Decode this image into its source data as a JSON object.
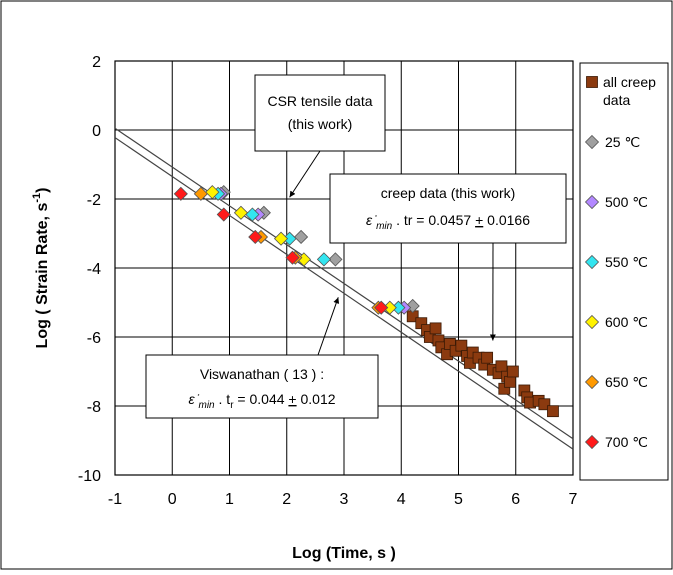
{
  "chart_data": {
    "type": "scatter",
    "xlabel": "Log (Time,  s )",
    "ylabel_main": "Log ( Strain Rate,  s",
    "ylabel_sup": "-1",
    "ylabel_close": ")",
    "xlim": [
      -1,
      7
    ],
    "ylim": [
      -10,
      2
    ],
    "xticks": [
      -1,
      0,
      1,
      2,
      3,
      4,
      5,
      6,
      7
    ],
    "yticks": [
      -10,
      -8,
      -6,
      -4,
      -2,
      0,
      2
    ],
    "grid": true,
    "legend_position": "right",
    "series": [
      {
        "name": "all creep data",
        "marker": "square",
        "color": "#8B3A0F",
        "points": [
          [
            4.2,
            -5.4
          ],
          [
            4.35,
            -5.6
          ],
          [
            4.45,
            -5.8
          ],
          [
            4.5,
            -6.0
          ],
          [
            4.6,
            -5.75
          ],
          [
            4.65,
            -6.1
          ],
          [
            4.7,
            -6.3
          ],
          [
            4.8,
            -6.5
          ],
          [
            4.85,
            -6.2
          ],
          [
            4.95,
            -6.4
          ],
          [
            5.05,
            -6.25
          ],
          [
            5.15,
            -6.55
          ],
          [
            5.2,
            -6.75
          ],
          [
            5.25,
            -6.45
          ],
          [
            5.35,
            -6.6
          ],
          [
            5.45,
            -6.8
          ],
          [
            5.5,
            -6.6
          ],
          [
            5.6,
            -6.95
          ],
          [
            5.7,
            -7.05
          ],
          [
            5.75,
            -6.85
          ],
          [
            5.8,
            -7.5
          ],
          [
            5.85,
            -7.15
          ],
          [
            5.9,
            -7.3
          ],
          [
            5.95,
            -7.0
          ],
          [
            6.15,
            -7.55
          ],
          [
            6.2,
            -7.75
          ],
          [
            6.25,
            -7.9
          ],
          [
            6.4,
            -7.85
          ],
          [
            6.5,
            -7.95
          ],
          [
            6.65,
            -8.15
          ]
        ]
      },
      {
        "name": "25 ℃",
        "marker": "diamond",
        "color": "#A0A0A0",
        "points": [
          [
            0.9,
            -1.8
          ],
          [
            1.6,
            -2.4
          ],
          [
            2.25,
            -3.1
          ],
          [
            2.85,
            -3.75
          ],
          [
            4.2,
            -5.1
          ]
        ]
      },
      {
        "name": "500 ℃",
        "marker": "diamond",
        "color": "#B388FF",
        "points": [
          [
            0.85,
            -1.85
          ],
          [
            1.5,
            -2.45
          ],
          [
            4.05,
            -5.15
          ]
        ]
      },
      {
        "name": "550 ℃",
        "marker": "diamond",
        "color": "#33E5F0",
        "points": [
          [
            0.8,
            -1.85
          ],
          [
            1.4,
            -2.45
          ],
          [
            2.05,
            -3.15
          ],
          [
            2.65,
            -3.75
          ],
          [
            3.95,
            -5.15
          ]
        ]
      },
      {
        "name": "600 ℃",
        "marker": "diamond",
        "color": "#FFF200",
        "points": [
          [
            0.7,
            -1.8
          ],
          [
            1.2,
            -2.4
          ],
          [
            1.9,
            -3.15
          ],
          [
            2.3,
            -3.75
          ],
          [
            3.8,
            -5.15
          ]
        ]
      },
      {
        "name": "650 ℃",
        "marker": "diamond",
        "color": "#FF9900",
        "points": [
          [
            0.5,
            -1.85
          ],
          [
            1.55,
            -3.1
          ],
          [
            2.15,
            -3.7
          ],
          [
            3.6,
            -5.15
          ]
        ]
      },
      {
        "name": "700 ℃",
        "marker": "diamond",
        "color": "#FF1A1A",
        "points": [
          [
            0.15,
            -1.85
          ],
          [
            0.9,
            -2.45
          ],
          [
            1.45,
            -3.1
          ],
          [
            2.1,
            -3.7
          ],
          [
            3.65,
            -5.15
          ]
        ]
      }
    ],
    "fit_lines": [
      {
        "x": [
          -1,
          7
        ],
        "y": [
          -0.22,
          -9.25
        ]
      },
      {
        "x": [
          -1,
          7
        ],
        "y": [
          0.05,
          -8.95
        ]
      }
    ],
    "annotations": {
      "csr": {
        "line1": "CSR  tensile data",
        "line2": "(this work)",
        "arrow_to": [
          2.05,
          -1.95
        ]
      },
      "creep": {
        "line1": "creep data (this work)",
        "eq_symbol": "ε ̇",
        "eq_sub": "min",
        "eq_tail": " .  tr  = 0.0457 ",
        "eq_pm": "+",
        "eq_value": " 0.0166",
        "arrow_to": [
          5.6,
          -6.1
        ]
      },
      "visw": {
        "line1": "Viswanathan ( 13 ) :",
        "eq_symbol": "ε ̇",
        "eq_sub": "min",
        "eq_mid": " .  t",
        "eq_sub2": "r",
        "eq_tail": " = 0.044 ",
        "eq_pm": "+",
        "eq_value": " 0.012",
        "arrow_to": [
          2.9,
          -4.85
        ]
      }
    }
  }
}
